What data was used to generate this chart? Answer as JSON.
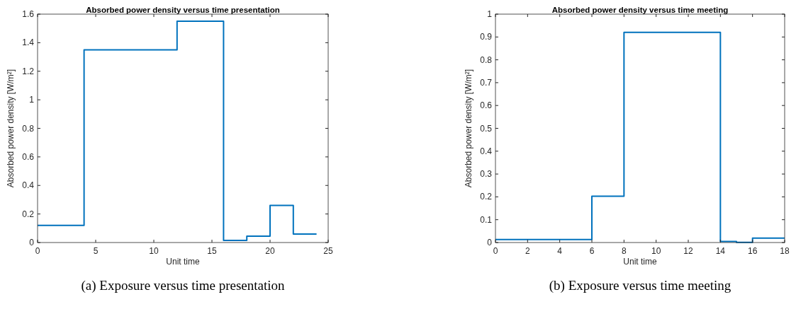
{
  "chart_data": [
    {
      "type": "step",
      "title": "Absorbed power density versus time presentation",
      "xlabel": "Unit time",
      "ylabel": "Absorbed power density [W/m²]",
      "annotations": [
        "(a) Exposure versus time presentation"
      ],
      "xlim": [
        0,
        25
      ],
      "xticks": [
        0,
        5,
        10,
        15,
        20,
        25
      ],
      "ylim": [
        0,
        1.6
      ],
      "yticks": [
        0,
        0.2,
        0.4,
        0.6,
        0.8,
        1,
        1.2,
        1.4,
        1.6
      ],
      "series": [
        {
          "color": "#0072bd",
          "x": [
            0,
            4,
            12,
            16,
            18,
            20,
            22,
            24
          ],
          "values": [
            0.12,
            1.35,
            1.55,
            0.015,
            0.045,
            0.26,
            0.06,
            0.06
          ]
        }
      ]
    },
    {
      "type": "step",
      "title": "Absorbed power density versus time meeting",
      "xlabel": "Unit time",
      "ylabel": "Absorbed power density [W/m²]",
      "annotations": [
        "(b) Exposure versus time meeting"
      ],
      "xlim": [
        0,
        18
      ],
      "xticks": [
        0,
        2,
        4,
        6,
        8,
        10,
        12,
        14,
        16,
        18
      ],
      "ylim": [
        0,
        1
      ],
      "yticks": [
        0,
        0.1,
        0.2,
        0.3,
        0.4,
        0.5,
        0.6,
        0.7,
        0.8,
        0.9,
        1
      ],
      "series": [
        {
          "color": "#0072bd",
          "x": [
            0,
            6,
            8,
            14,
            15,
            16,
            18
          ],
          "values": [
            0.013,
            0.203,
            0.92,
            0.005,
            0.001,
            0.019,
            0.019
          ]
        }
      ]
    }
  ]
}
